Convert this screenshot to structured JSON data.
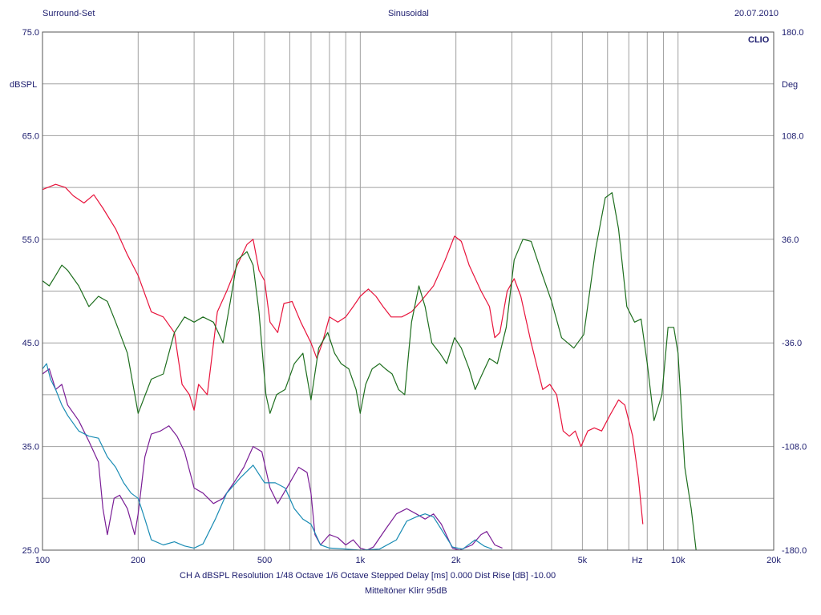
{
  "header": {
    "left": "Surround-Set",
    "center": "Sinusoidal",
    "right": "20.07.2010"
  },
  "brand": "CLIO",
  "footer": {
    "line1": "CH A   dBSPL   Resolution 1/48 Octave   1/6 Octave   Stepped    Delay [ms] 0.000    Dist Rise [dB] -10.00",
    "line2": "Mitteltöner Klirr 95dB"
  },
  "colors": {
    "red": "#e8143c",
    "green": "#1e6e1e",
    "purple": "#7a1e96",
    "cyan": "#1a8cb4",
    "text": "#1c1c6e",
    "grid": "#a0a0a0"
  },
  "chart_data": {
    "type": "line",
    "xscale": "log",
    "xlim": [
      100,
      20000
    ],
    "ylim": [
      25,
      75
    ],
    "y2lim": [
      -180,
      180
    ],
    "ylabel": "dBSPL",
    "y2label": "Deg",
    "x_unit_label": "Hz",
    "grid": true,
    "x_ticks": [
      {
        "v": 100,
        "label": "100"
      },
      {
        "v": 200,
        "label": "200"
      },
      {
        "v": 500,
        "label": "500"
      },
      {
        "v": 1000,
        "label": "1k"
      },
      {
        "v": 2000,
        "label": "2k"
      },
      {
        "v": 5000,
        "label": "5k"
      },
      {
        "v": 10000,
        "label": "10k"
      },
      {
        "v": 20000,
        "label": "20k"
      }
    ],
    "y_ticks": [
      {
        "v": 75,
        "label": "75.0"
      },
      {
        "v": 65,
        "label": "65.0"
      },
      {
        "v": 55,
        "label": "55.0"
      },
      {
        "v": 45,
        "label": "45.0"
      },
      {
        "v": 35,
        "label": "35.0"
      },
      {
        "v": 25,
        "label": "25.0"
      }
    ],
    "y2_ticks": [
      {
        "v": 180,
        "label": "180.0"
      },
      {
        "v": 108,
        "label": "108.0"
      },
      {
        "v": 36,
        "label": "36.0"
      },
      {
        "v": -36,
        "label": "-36.0"
      },
      {
        "v": -108,
        "label": "-108.0"
      },
      {
        "v": -180,
        "label": "-180.0"
      }
    ],
    "series": [
      {
        "color": "red",
        "points": [
          [
            100,
            59.8
          ],
          [
            110,
            60.3
          ],
          [
            118,
            60
          ],
          [
            125,
            59.2
          ],
          [
            135,
            58.5
          ],
          [
            145,
            59.3
          ],
          [
            155,
            58
          ],
          [
            170,
            56
          ],
          [
            185,
            53.5
          ],
          [
            200,
            51.5
          ],
          [
            220,
            48
          ],
          [
            240,
            47.5
          ],
          [
            260,
            46
          ],
          [
            275,
            41
          ],
          [
            290,
            40
          ],
          [
            300,
            38.5
          ],
          [
            310,
            41
          ],
          [
            330,
            40
          ],
          [
            355,
            48
          ],
          [
            380,
            50
          ],
          [
            410,
            52.5
          ],
          [
            440,
            54.5
          ],
          [
            460,
            55
          ],
          [
            480,
            52
          ],
          [
            500,
            51
          ],
          [
            520,
            47
          ],
          [
            550,
            46
          ],
          [
            575,
            48.8
          ],
          [
            610,
            49
          ],
          [
            650,
            47
          ],
          [
            700,
            45
          ],
          [
            730,
            43.5
          ],
          [
            760,
            45
          ],
          [
            800,
            47.5
          ],
          [
            850,
            47
          ],
          [
            900,
            47.5
          ],
          [
            950,
            48.5
          ],
          [
            1000,
            49.5
          ],
          [
            1060,
            50.2
          ],
          [
            1120,
            49.5
          ],
          [
            1180,
            48.5
          ],
          [
            1250,
            47.5
          ],
          [
            1350,
            47.5
          ],
          [
            1450,
            48
          ],
          [
            1550,
            49
          ],
          [
            1700,
            50.5
          ],
          [
            1850,
            53
          ],
          [
            1980,
            55.3
          ],
          [
            2080,
            54.8
          ],
          [
            2200,
            52.5
          ],
          [
            2400,
            50
          ],
          [
            2550,
            48.5
          ],
          [
            2650,
            45.5
          ],
          [
            2750,
            46
          ],
          [
            2900,
            50
          ],
          [
            3050,
            51.2
          ],
          [
            3200,
            49.5
          ],
          [
            3450,
            45
          ],
          [
            3750,
            40.5
          ],
          [
            3950,
            41
          ],
          [
            4150,
            40
          ],
          [
            4350,
            36.5
          ],
          [
            4550,
            36
          ],
          [
            4750,
            36.5
          ],
          [
            4950,
            35
          ],
          [
            5200,
            36.5
          ],
          [
            5450,
            36.8
          ],
          [
            5750,
            36.5
          ],
          [
            6100,
            38
          ],
          [
            6500,
            39.5
          ],
          [
            6800,
            39
          ],
          [
            7200,
            36
          ],
          [
            7500,
            32
          ],
          [
            7750,
            27.5
          ]
        ]
      },
      {
        "color": "green",
        "points": [
          [
            100,
            51
          ],
          [
            105,
            50.5
          ],
          [
            110,
            51.5
          ],
          [
            115,
            52.5
          ],
          [
            120,
            52
          ],
          [
            130,
            50.5
          ],
          [
            140,
            48.5
          ],
          [
            150,
            49.5
          ],
          [
            160,
            49
          ],
          [
            170,
            47
          ],
          [
            185,
            44
          ],
          [
            200,
            38.2
          ],
          [
            220,
            41.5
          ],
          [
            240,
            42
          ],
          [
            260,
            46
          ],
          [
            280,
            47.5
          ],
          [
            300,
            47
          ],
          [
            320,
            47.5
          ],
          [
            345,
            47
          ],
          [
            370,
            45
          ],
          [
            390,
            49
          ],
          [
            410,
            53
          ],
          [
            440,
            53.8
          ],
          [
            460,
            52.5
          ],
          [
            480,
            48
          ],
          [
            505,
            40
          ],
          [
            520,
            38.2
          ],
          [
            545,
            40
          ],
          [
            580,
            40.5
          ],
          [
            620,
            43
          ],
          [
            660,
            44
          ],
          [
            700,
            39.5
          ],
          [
            740,
            44.5
          ],
          [
            790,
            46
          ],
          [
            830,
            44
          ],
          [
            870,
            43
          ],
          [
            920,
            42.5
          ],
          [
            970,
            40.5
          ],
          [
            1000,
            38.2
          ],
          [
            1040,
            41
          ],
          [
            1090,
            42.5
          ],
          [
            1150,
            43
          ],
          [
            1200,
            42.5
          ],
          [
            1260,
            42
          ],
          [
            1320,
            40.5
          ],
          [
            1380,
            40
          ],
          [
            1450,
            47
          ],
          [
            1530,
            50.5
          ],
          [
            1600,
            48.5
          ],
          [
            1680,
            45
          ],
          [
            1780,
            44
          ],
          [
            1870,
            43
          ],
          [
            1980,
            45.5
          ],
          [
            2080,
            44.5
          ],
          [
            2200,
            42.5
          ],
          [
            2300,
            40.5
          ],
          [
            2420,
            42
          ],
          [
            2550,
            43.5
          ],
          [
            2700,
            43
          ],
          [
            2880,
            46.5
          ],
          [
            3050,
            53
          ],
          [
            3250,
            55
          ],
          [
            3450,
            54.8
          ],
          [
            3700,
            52
          ],
          [
            4000,
            49
          ],
          [
            4300,
            45.5
          ],
          [
            4700,
            44.5
          ],
          [
            5050,
            45.8
          ],
          [
            5500,
            54
          ],
          [
            5900,
            59
          ],
          [
            6200,
            59.5
          ],
          [
            6500,
            56
          ],
          [
            6900,
            48.5
          ],
          [
            7300,
            47
          ],
          [
            7650,
            47.3
          ],
          [
            8000,
            43
          ],
          [
            8400,
            37.5
          ],
          [
            8900,
            40
          ],
          [
            9300,
            46.5
          ],
          [
            9700,
            46.5
          ],
          [
            10000,
            44
          ],
          [
            10500,
            33
          ],
          [
            11000,
            29
          ],
          [
            11400,
            25
          ]
        ]
      },
      {
        "color": "purple",
        "points": [
          [
            100,
            42
          ],
          [
            105,
            42.5
          ],
          [
            110,
            40.5
          ],
          [
            115,
            41
          ],
          [
            120,
            39
          ],
          [
            130,
            37.5
          ],
          [
            140,
            35.5
          ],
          [
            150,
            33.5
          ],
          [
            155,
            29
          ],
          [
            160,
            26.5
          ],
          [
            168,
            30
          ],
          [
            175,
            30.3
          ],
          [
            185,
            29
          ],
          [
            195,
            26.5
          ],
          [
            200,
            28.5
          ],
          [
            210,
            34
          ],
          [
            220,
            36.2
          ],
          [
            235,
            36.5
          ],
          [
            250,
            37
          ],
          [
            265,
            36
          ],
          [
            280,
            34.5
          ],
          [
            300,
            31
          ],
          [
            320,
            30.5
          ],
          [
            345,
            29.5
          ],
          [
            370,
            30
          ],
          [
            400,
            31.5
          ],
          [
            430,
            33
          ],
          [
            460,
            35
          ],
          [
            490,
            34.5
          ],
          [
            520,
            31
          ],
          [
            550,
            29.5
          ],
          [
            600,
            31.5
          ],
          [
            640,
            33
          ],
          [
            680,
            32.5
          ],
          [
            700,
            30.5
          ],
          [
            720,
            26.5
          ],
          [
            750,
            25.5
          ],
          [
            800,
            26.5
          ],
          [
            850,
            26.2
          ],
          [
            900,
            25.5
          ],
          [
            950,
            26
          ],
          [
            1000,
            25.2
          ],
          [
            1050,
            25
          ],
          [
            1100,
            25.3
          ],
          [
            1200,
            27
          ],
          [
            1300,
            28.5
          ],
          [
            1400,
            29
          ],
          [
            1500,
            28.5
          ],
          [
            1600,
            28
          ],
          [
            1700,
            28.5
          ],
          [
            1800,
            27.5
          ],
          [
            1950,
            25.2
          ],
          [
            2050,
            25
          ],
          [
            2250,
            25.5
          ],
          [
            2400,
            26.5
          ],
          [
            2500,
            26.8
          ],
          [
            2650,
            25.5
          ],
          [
            2800,
            25.2
          ]
        ]
      },
      {
        "color": "cyan",
        "points": [
          [
            100,
            42.5
          ],
          [
            103,
            43
          ],
          [
            106,
            41.5
          ],
          [
            110,
            40.5
          ],
          [
            115,
            39
          ],
          [
            120,
            38
          ],
          [
            130,
            36.5
          ],
          [
            140,
            36
          ],
          [
            150,
            35.8
          ],
          [
            160,
            34
          ],
          [
            170,
            33
          ],
          [
            180,
            31.5
          ],
          [
            190,
            30.5
          ],
          [
            200,
            30
          ],
          [
            210,
            28
          ],
          [
            220,
            26
          ],
          [
            240,
            25.5
          ],
          [
            260,
            25.8
          ],
          [
            280,
            25.4
          ],
          [
            300,
            25.2
          ],
          [
            320,
            25.6
          ],
          [
            350,
            28
          ],
          [
            380,
            30.5
          ],
          [
            420,
            32
          ],
          [
            460,
            33.2
          ],
          [
            500,
            31.5
          ],
          [
            540,
            31.5
          ],
          [
            580,
            31
          ],
          [
            620,
            29
          ],
          [
            660,
            28
          ],
          [
            700,
            27.5
          ],
          [
            750,
            25.5
          ],
          [
            800,
            25.2
          ],
          [
            900,
            25.1
          ],
          [
            1000,
            25
          ],
          [
            1150,
            25.1
          ],
          [
            1300,
            26
          ],
          [
            1400,
            27.8
          ],
          [
            1500,
            28.2
          ],
          [
            1600,
            28.5
          ],
          [
            1700,
            28.2
          ],
          [
            1800,
            27
          ],
          [
            1950,
            25.3
          ],
          [
            2100,
            25.1
          ],
          [
            2300,
            26
          ],
          [
            2450,
            25.4
          ],
          [
            2600,
            25.1
          ]
        ]
      }
    ]
  }
}
